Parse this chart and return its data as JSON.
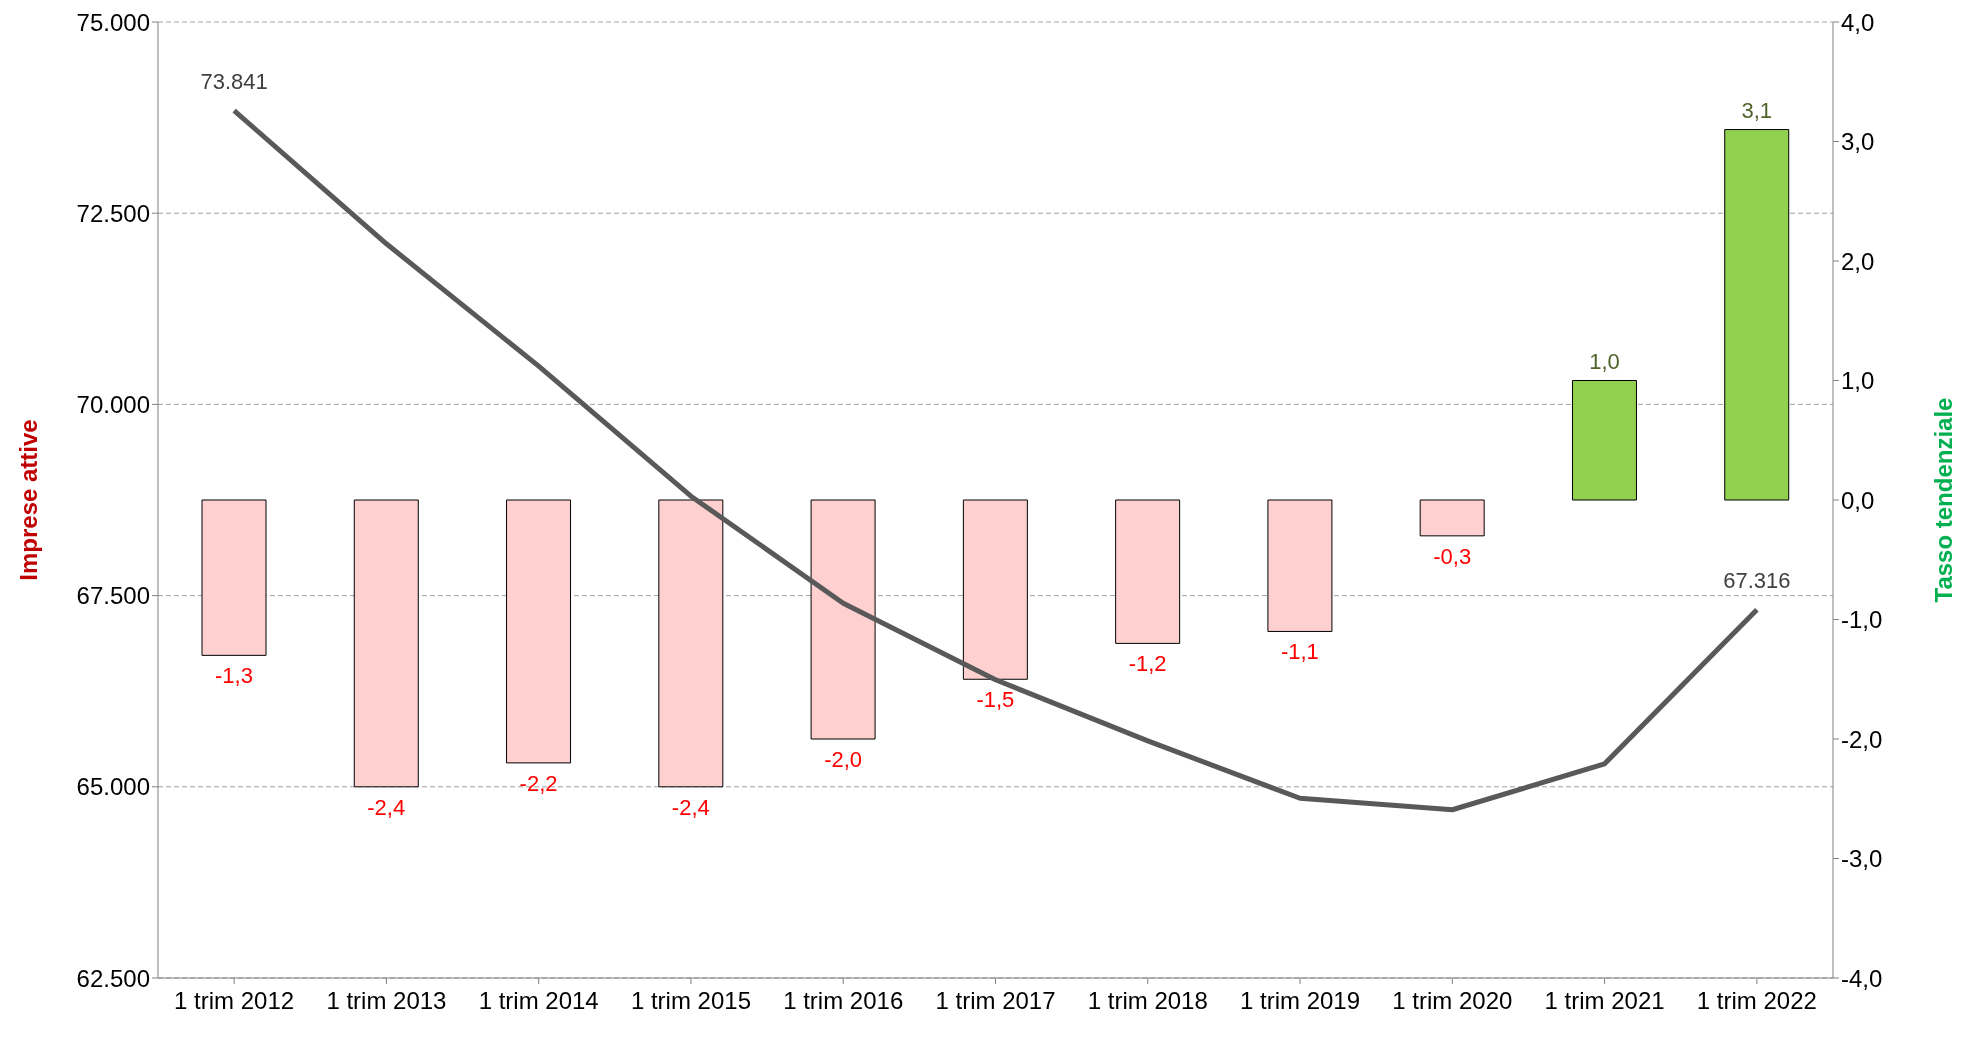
{
  "chart_data": {
    "type": "bar",
    "categories": [
      "1 trim 2012",
      "1 trim 2013",
      "1 trim 2014",
      "1 trim 2015",
      "1 trim 2016",
      "1 trim 2017",
      "1 trim 2018",
      "1 trim 2019",
      "1 trim 2020",
      "1 trim 2021",
      "1 trim 2022"
    ],
    "series": [
      {
        "axis": "y2",
        "values": [
          -1.3,
          -2.4,
          -2.2,
          -2.4,
          -2.0,
          -1.5,
          -1.2,
          -1.1,
          -0.3,
          1.0,
          3.1
        ],
        "colors": [
          "#ffd0d0",
          "#ffd0d0",
          "#ffd0d0",
          "#ffd0d0",
          "#ffd0d0",
          "#ffd0d0",
          "#ffd0d0",
          "#ffd0d0",
          "#ffd0d0",
          "#92d050",
          "#92d050"
        ],
        "value_labels": [
          "-1,3",
          "-2,4",
          "-2,2",
          "-2,4",
          "-2,0",
          "-1,5",
          "-1,2",
          "-1,1",
          "-0,3",
          "1,0",
          "3,1"
        ]
      },
      {
        "type": "line",
        "axis": "y",
        "color": "#595959",
        "values": [
          73841,
          72100,
          70500,
          68800,
          67400,
          66400,
          65600,
          64850,
          64700,
          65300,
          67316
        ],
        "value_labels": [
          "73.841",
          null,
          null,
          null,
          null,
          null,
          null,
          null,
          null,
          null,
          "67.316"
        ]
      }
    ],
    "ylabel": "Imprese attive",
    "y2label": "Tasso tendenziale",
    "ylim": [
      62500,
      75000
    ],
    "yticks": [
      {
        "value": 62500,
        "label": "62.500"
      },
      {
        "value": 65000,
        "label": "65.000"
      },
      {
        "value": 67500,
        "label": "67.500"
      },
      {
        "value": 70000,
        "label": "70.000"
      },
      {
        "value": 72500,
        "label": "72.500"
      },
      {
        "value": 75000,
        "label": "75.000"
      }
    ],
    "y2lim": [
      -4,
      4
    ],
    "y2ticks": [
      {
        "value": -4,
        "label": "-4,0"
      },
      {
        "value": -3,
        "label": "-3,0"
      },
      {
        "value": -2,
        "label": "-2,0"
      },
      {
        "value": -1,
        "label": "-1,0"
      },
      {
        "value": 0,
        "label": "0,0"
      },
      {
        "value": 1,
        "label": "1,0"
      },
      {
        "value": 2,
        "label": "2,0"
      },
      {
        "value": 3,
        "label": "3,0"
      },
      {
        "value": 4,
        "label": "4,0"
      }
    ],
    "grid": "y",
    "legend": false,
    "marker": "none",
    "line_style": "solid"
  }
}
